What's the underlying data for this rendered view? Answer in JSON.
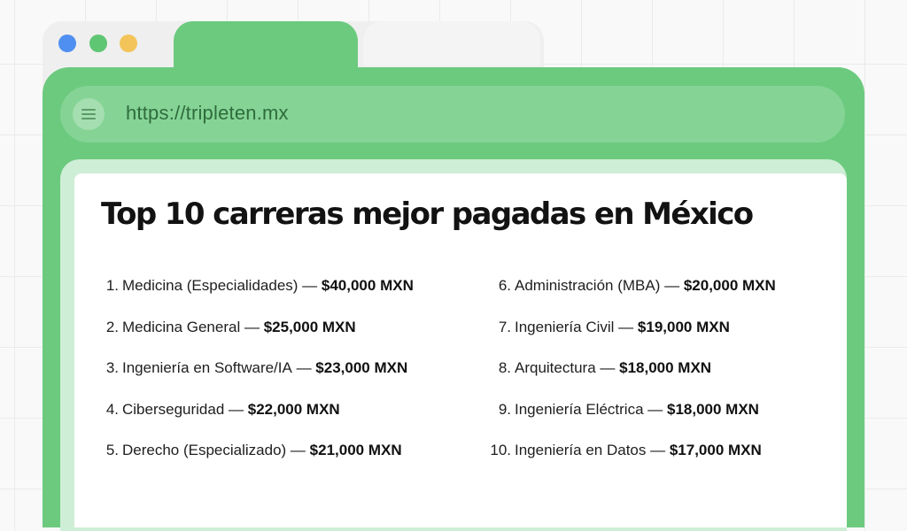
{
  "browser": {
    "url": "https://tripleten.mx"
  },
  "page": {
    "title": "Top 10 carreras mejor pagadas en México"
  },
  "ranking": {
    "separator": " — ",
    "left": [
      {
        "rank": "1.",
        "career": "Medicina (Especialidades)",
        "salary": "$40,000 MXN"
      },
      {
        "rank": "2.",
        "career": "Medicina General",
        "salary": "$25,000 MXN"
      },
      {
        "rank": "3.",
        "career": "Ingeniería en Software/IA",
        "salary": "$23,000 MXN"
      },
      {
        "rank": "4.",
        "career": "Ciberseguridad",
        "salary": "$22,000 MXN"
      },
      {
        "rank": "5.",
        "career": "Derecho (Especializado)",
        "salary": "$21,000 MXN"
      }
    ],
    "right": [
      {
        "rank": "6.",
        "career": "Administración (MBA)",
        "salary": "$20,000 MXN"
      },
      {
        "rank": "7.",
        "career": "Ingeniería Civil",
        "salary": "$19,000 MXN"
      },
      {
        "rank": "8.",
        "career": "Arquitectura",
        "salary": "$18,000 MXN"
      },
      {
        "rank": "9.",
        "career": "Ingeniería Eléctrica",
        "salary": "$18,000 MXN"
      },
      {
        "rank": "10.",
        "career": "Ingeniería en Datos",
        "salary": "$17,000 MXN"
      }
    ]
  },
  "icons": {
    "menu": "hamburger-menu-icon",
    "window_controls": [
      "close-dot",
      "minimize-dot",
      "maximize-dot"
    ]
  },
  "colors": {
    "accent_green": "#6cca7f",
    "address_bar": "#85d495",
    "url_text": "#2f6b3d",
    "dot_blue": "#4f8ff1",
    "dot_green": "#5fc674",
    "dot_yellow": "#f3c45a"
  }
}
